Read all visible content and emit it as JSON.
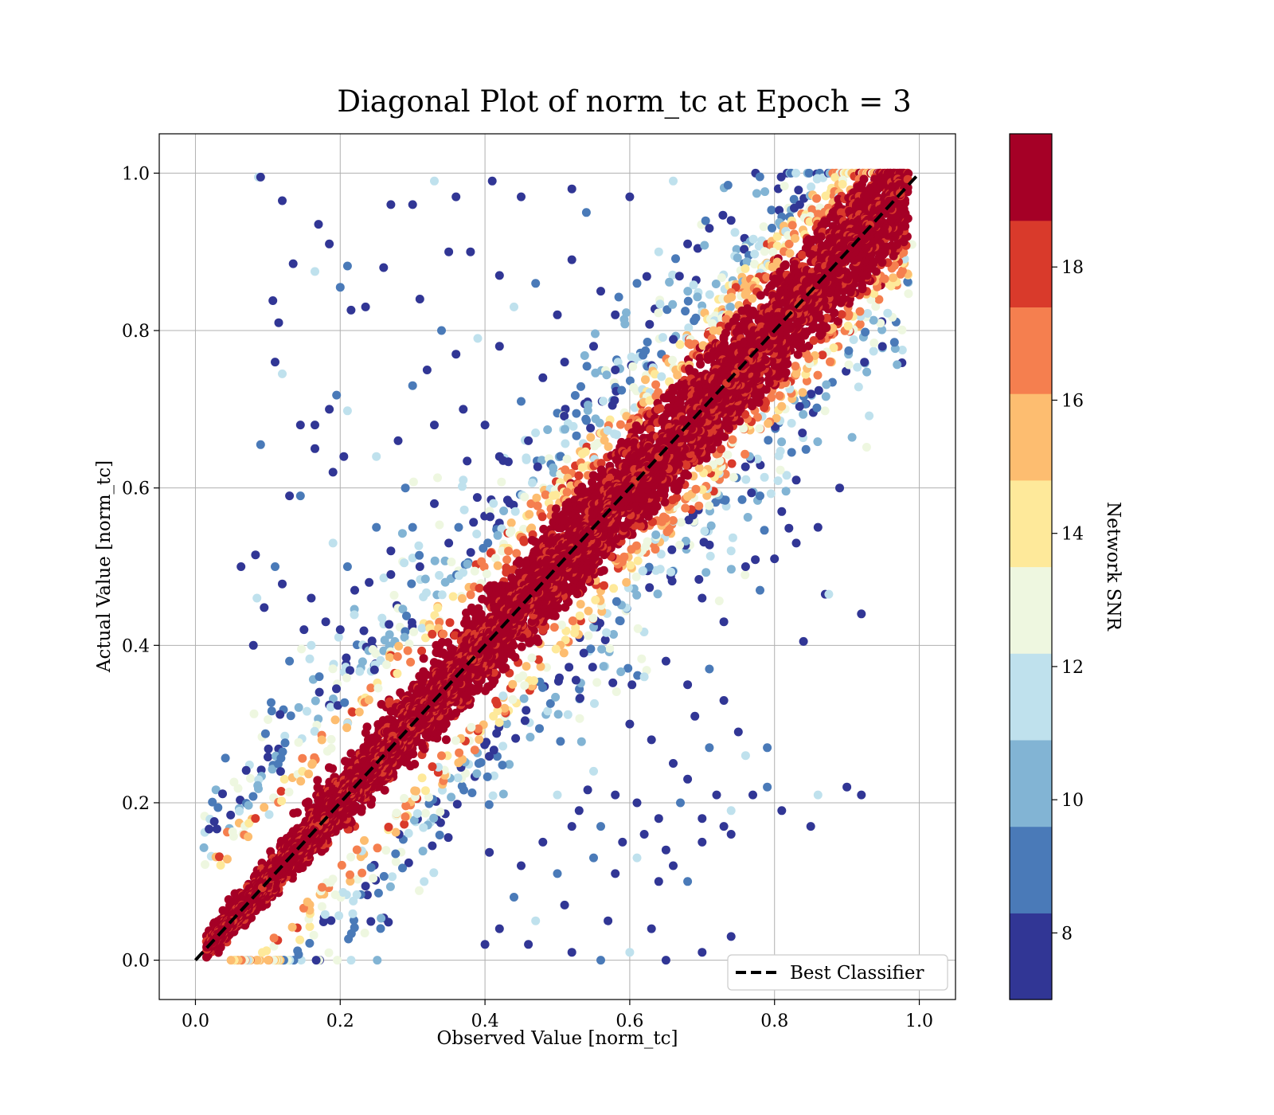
{
  "chart_data": {
    "type": "scatter",
    "title": "Diagonal Plot of norm_tc at Epoch = 3",
    "xlabel": "Observed Value [norm_tc]",
    "ylabel": "Actual Value [norm_tc]",
    "xlim": [
      -0.05,
      1.05
    ],
    "ylim": [
      -0.05,
      1.05
    ],
    "xticks": [
      "0.0",
      "0.2",
      "0.4",
      "0.6",
      "0.8",
      "1.0"
    ],
    "yticks": [
      "0.0",
      "0.2",
      "0.4",
      "0.6",
      "0.8",
      "1.0"
    ],
    "grid": true,
    "colorbar": {
      "label": "Network SNR",
      "range": [
        7,
        20
      ],
      "ticks": [
        "8",
        "10",
        "12",
        "14",
        "16",
        "18"
      ],
      "colors": [
        "#313695",
        "#4a7ab8",
        "#82b4d4",
        "#bfe1ed",
        "#eef7e0",
        "#fee99a",
        "#fdbd70",
        "#f57f4f",
        "#d93a2b",
        "#a50026"
      ]
    },
    "series": [
      {
        "name": "Best Classifier",
        "style": "dashed",
        "color": "#000000",
        "x": [
          0.0,
          1.0
        ],
        "y": [
          0.0,
          1.0
        ]
      }
    ],
    "legend": {
      "position": "lower-right"
    },
    "point_cloud": {
      "note_free": true,
      "color": "Network SNR",
      "band_center": "y = x",
      "outlier_points": [
        [
          0.087,
          0.995
        ],
        [
          0.09,
          0.995
        ],
        [
          0.12,
          0.965
        ],
        [
          0.17,
          0.935
        ],
        [
          0.185,
          0.91
        ],
        [
          0.21,
          0.882
        ],
        [
          0.135,
          0.885
        ],
        [
          0.165,
          0.875
        ],
        [
          0.107,
          0.838
        ],
        [
          0.115,
          0.81
        ],
        [
          0.2,
          0.855
        ],
        [
          0.215,
          0.826
        ],
        [
          0.235,
          0.83
        ],
        [
          0.11,
          0.76
        ],
        [
          0.12,
          0.745
        ],
        [
          0.09,
          0.655
        ],
        [
          0.145,
          0.68
        ],
        [
          0.165,
          0.68
        ],
        [
          0.165,
          0.65
        ],
        [
          0.185,
          0.7
        ],
        [
          0.195,
          0.718
        ],
        [
          0.21,
          0.698
        ],
        [
          0.205,
          0.64
        ],
        [
          0.19,
          0.62
        ],
        [
          0.13,
          0.59
        ],
        [
          0.145,
          0.59
        ],
        [
          0.063,
          0.5
        ],
        [
          0.083,
          0.515
        ],
        [
          0.085,
          0.46
        ],
        [
          0.08,
          0.4
        ],
        [
          0.11,
          0.5
        ],
        [
          0.12,
          0.478
        ],
        [
          0.095,
          0.448
        ],
        [
          0.27,
          0.96
        ],
        [
          0.3,
          0.96
        ],
        [
          0.33,
          0.99
        ],
        [
          0.36,
          0.97
        ],
        [
          0.41,
          0.99
        ],
        [
          0.45,
          0.97
        ],
        [
          0.52,
          0.98
        ],
        [
          0.54,
          0.95
        ],
        [
          0.6,
          0.97
        ],
        [
          0.66,
          0.99
        ],
        [
          0.26,
          0.88
        ],
        [
          0.31,
          0.84
        ],
        [
          0.34,
          0.8
        ],
        [
          0.35,
          0.9
        ],
        [
          0.38,
          0.9
        ],
        [
          0.42,
          0.87
        ],
        [
          0.44,
          0.83
        ],
        [
          0.47,
          0.86
        ],
        [
          0.5,
          0.82
        ],
        [
          0.52,
          0.89
        ],
        [
          0.56,
          0.85
        ],
        [
          0.58,
          0.82
        ],
        [
          0.61,
          0.86
        ],
        [
          0.64,
          0.9
        ],
        [
          0.68,
          0.91
        ],
        [
          0.71,
          0.93
        ],
        [
          0.74,
          0.94
        ],
        [
          0.3,
          0.73
        ],
        [
          0.32,
          0.75
        ],
        [
          0.36,
          0.77
        ],
        [
          0.39,
          0.79
        ],
        [
          0.42,
          0.78
        ],
        [
          0.45,
          0.71
        ],
        [
          0.48,
          0.74
        ],
        [
          0.51,
          0.76
        ],
        [
          0.55,
          0.78
        ],
        [
          0.58,
          0.75
        ],
        [
          0.25,
          0.64
        ],
        [
          0.28,
          0.66
        ],
        [
          0.33,
          0.68
        ],
        [
          0.37,
          0.7
        ],
        [
          0.4,
          0.68
        ],
        [
          0.29,
          0.6
        ],
        [
          0.33,
          0.58
        ],
        [
          0.37,
          0.61
        ],
        [
          0.42,
          0.64
        ],
        [
          0.46,
          0.66
        ],
        [
          0.25,
          0.55
        ],
        [
          0.27,
          0.52
        ],
        [
          0.31,
          0.5
        ],
        [
          0.35,
          0.53
        ],
        [
          0.19,
          0.53
        ],
        [
          0.21,
          0.5
        ],
        [
          0.16,
          0.46
        ],
        [
          0.22,
          0.47
        ],
        [
          0.15,
          0.42
        ],
        [
          0.18,
          0.43
        ],
        [
          0.13,
          0.38
        ],
        [
          0.16,
          0.4
        ],
        [
          0.2,
          0.42
        ],
        [
          0.24,
          0.48
        ],
        [
          0.27,
          0.49
        ],
        [
          0.3,
          0.55
        ],
        [
          0.7,
          0.46
        ],
        [
          0.73,
          0.43
        ],
        [
          0.74,
          0.52
        ],
        [
          0.76,
          0.5
        ],
        [
          0.78,
          0.47
        ],
        [
          0.8,
          0.51
        ],
        [
          0.83,
          0.53
        ],
        [
          0.86,
          0.55
        ],
        [
          0.87,
          0.465
        ],
        [
          0.875,
          0.465
        ],
        [
          0.84,
          0.405
        ],
        [
          0.92,
          0.44
        ],
        [
          0.89,
          0.6
        ],
        [
          0.83,
          0.61
        ],
        [
          0.78,
          0.59
        ],
        [
          0.81,
          0.57
        ],
        [
          0.62,
          0.36
        ],
        [
          0.65,
          0.38
        ],
        [
          0.68,
          0.35
        ],
        [
          0.71,
          0.37
        ],
        [
          0.69,
          0.31
        ],
        [
          0.73,
          0.33
        ],
        [
          0.75,
          0.29
        ],
        [
          0.76,
          0.26
        ],
        [
          0.79,
          0.27
        ],
        [
          0.6,
          0.3
        ],
        [
          0.63,
          0.28
        ],
        [
          0.66,
          0.25
        ],
        [
          0.68,
          0.23
        ],
        [
          0.71,
          0.27
        ],
        [
          0.55,
          0.24
        ],
        [
          0.58,
          0.21
        ],
        [
          0.61,
          0.2
        ],
        [
          0.64,
          0.18
        ],
        [
          0.67,
          0.2
        ],
        [
          0.7,
          0.18
        ],
        [
          0.72,
          0.21
        ],
        [
          0.74,
          0.19
        ],
        [
          0.77,
          0.21
        ],
        [
          0.79,
          0.22
        ],
        [
          0.81,
          0.19
        ],
        [
          0.85,
          0.17
        ],
        [
          0.9,
          0.22
        ],
        [
          0.92,
          0.21
        ],
        [
          0.86,
          0.21
        ],
        [
          0.7,
          0.15
        ],
        [
          0.73,
          0.17
        ],
        [
          0.74,
          0.16
        ],
        [
          0.52,
          0.17
        ],
        [
          0.55,
          0.13
        ],
        [
          0.58,
          0.11
        ],
        [
          0.61,
          0.13
        ],
        [
          0.64,
          0.1
        ],
        [
          0.66,
          0.12
        ],
        [
          0.68,
          0.1
        ],
        [
          0.63,
          0.04
        ],
        [
          0.57,
          0.05
        ],
        [
          0.51,
          0.07
        ],
        [
          0.47,
          0.05
        ],
        [
          0.44,
          0.08
        ],
        [
          0.42,
          0.04
        ],
        [
          0.4,
          0.02
        ],
        [
          0.46,
          0.02
        ],
        [
          0.52,
          0.01
        ],
        [
          0.56,
          0.0
        ],
        [
          0.6,
          0.01
        ],
        [
          0.65,
          0.0
        ],
        [
          0.7,
          0.01
        ],
        [
          0.74,
          0.03
        ],
        [
          0.5,
          0.11
        ],
        [
          0.48,
          0.15
        ],
        [
          0.45,
          0.12
        ],
        [
          0.5,
          0.21
        ],
        [
          0.53,
          0.19
        ],
        [
          0.56,
          0.17
        ],
        [
          0.59,
          0.15
        ],
        [
          0.62,
          0.16
        ],
        [
          0.65,
          0.14
        ]
      ]
    }
  }
}
